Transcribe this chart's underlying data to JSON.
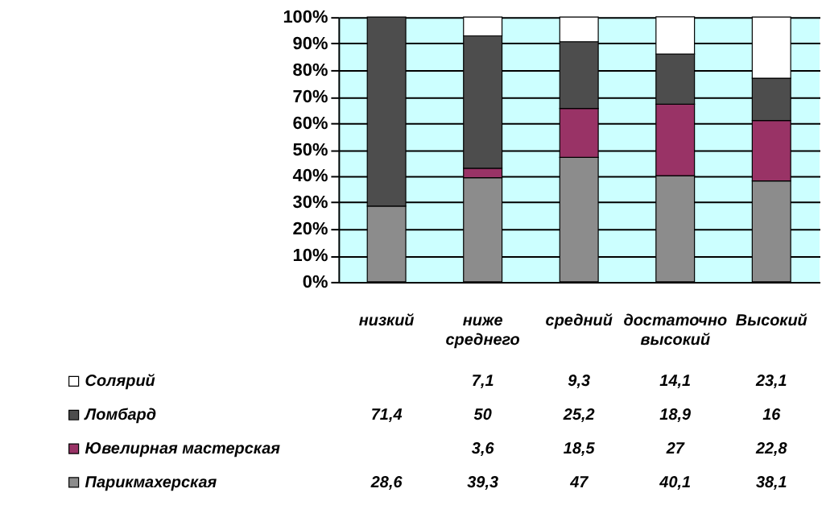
{
  "chart_data": {
    "type": "bar",
    "stacked": true,
    "categories": [
      "низкий",
      "ниже среднего",
      "средний",
      "достаточно высокий",
      "Высокий"
    ],
    "series": [
      {
        "name": "Парикмахерская",
        "color": "#8c8c8c",
        "values": [
          28.6,
          39.3,
          47,
          40.1,
          38.1
        ],
        "value_labels": [
          "28,6",
          "39,3",
          "47",
          "40,1",
          "38,1"
        ]
      },
      {
        "name": "Ювелирная мастерская",
        "color": "#993366",
        "values": [
          null,
          3.6,
          18.5,
          27,
          22.8
        ],
        "value_labels": [
          null,
          "3,6",
          "18,5",
          "27",
          "22,8"
        ]
      },
      {
        "name": "Ломбард",
        "color": "#4d4d4d",
        "values": [
          71.4,
          50,
          25.2,
          18.9,
          16
        ],
        "value_labels": [
          "71,4",
          "50",
          "25,2",
          "18,9",
          "16"
        ]
      },
      {
        "name": "Солярий",
        "color": "#ffffff",
        "values": [
          null,
          7.1,
          9.3,
          14.1,
          23.1
        ],
        "value_labels": [
          null,
          "7,1",
          "9,3",
          "14,1",
          "23,1"
        ]
      }
    ],
    "ylim": [
      0,
      100
    ],
    "yticks": [
      {
        "value": 0,
        "label": "0%"
      },
      {
        "value": 10,
        "label": "10%"
      },
      {
        "value": 20,
        "label": "20%"
      },
      {
        "value": 30,
        "label": "30%"
      },
      {
        "value": 40,
        "label": "40%"
      },
      {
        "value": 50,
        "label": "50%"
      },
      {
        "value": 60,
        "label": "60%"
      },
      {
        "value": 70,
        "label": "70%"
      },
      {
        "value": 80,
        "label": "80%"
      },
      {
        "value": 90,
        "label": "90%"
      },
      {
        "value": 100,
        "label": "100%"
      }
    ],
    "grid": "y",
    "tick_labels": "y",
    "legend": "bottom"
  }
}
